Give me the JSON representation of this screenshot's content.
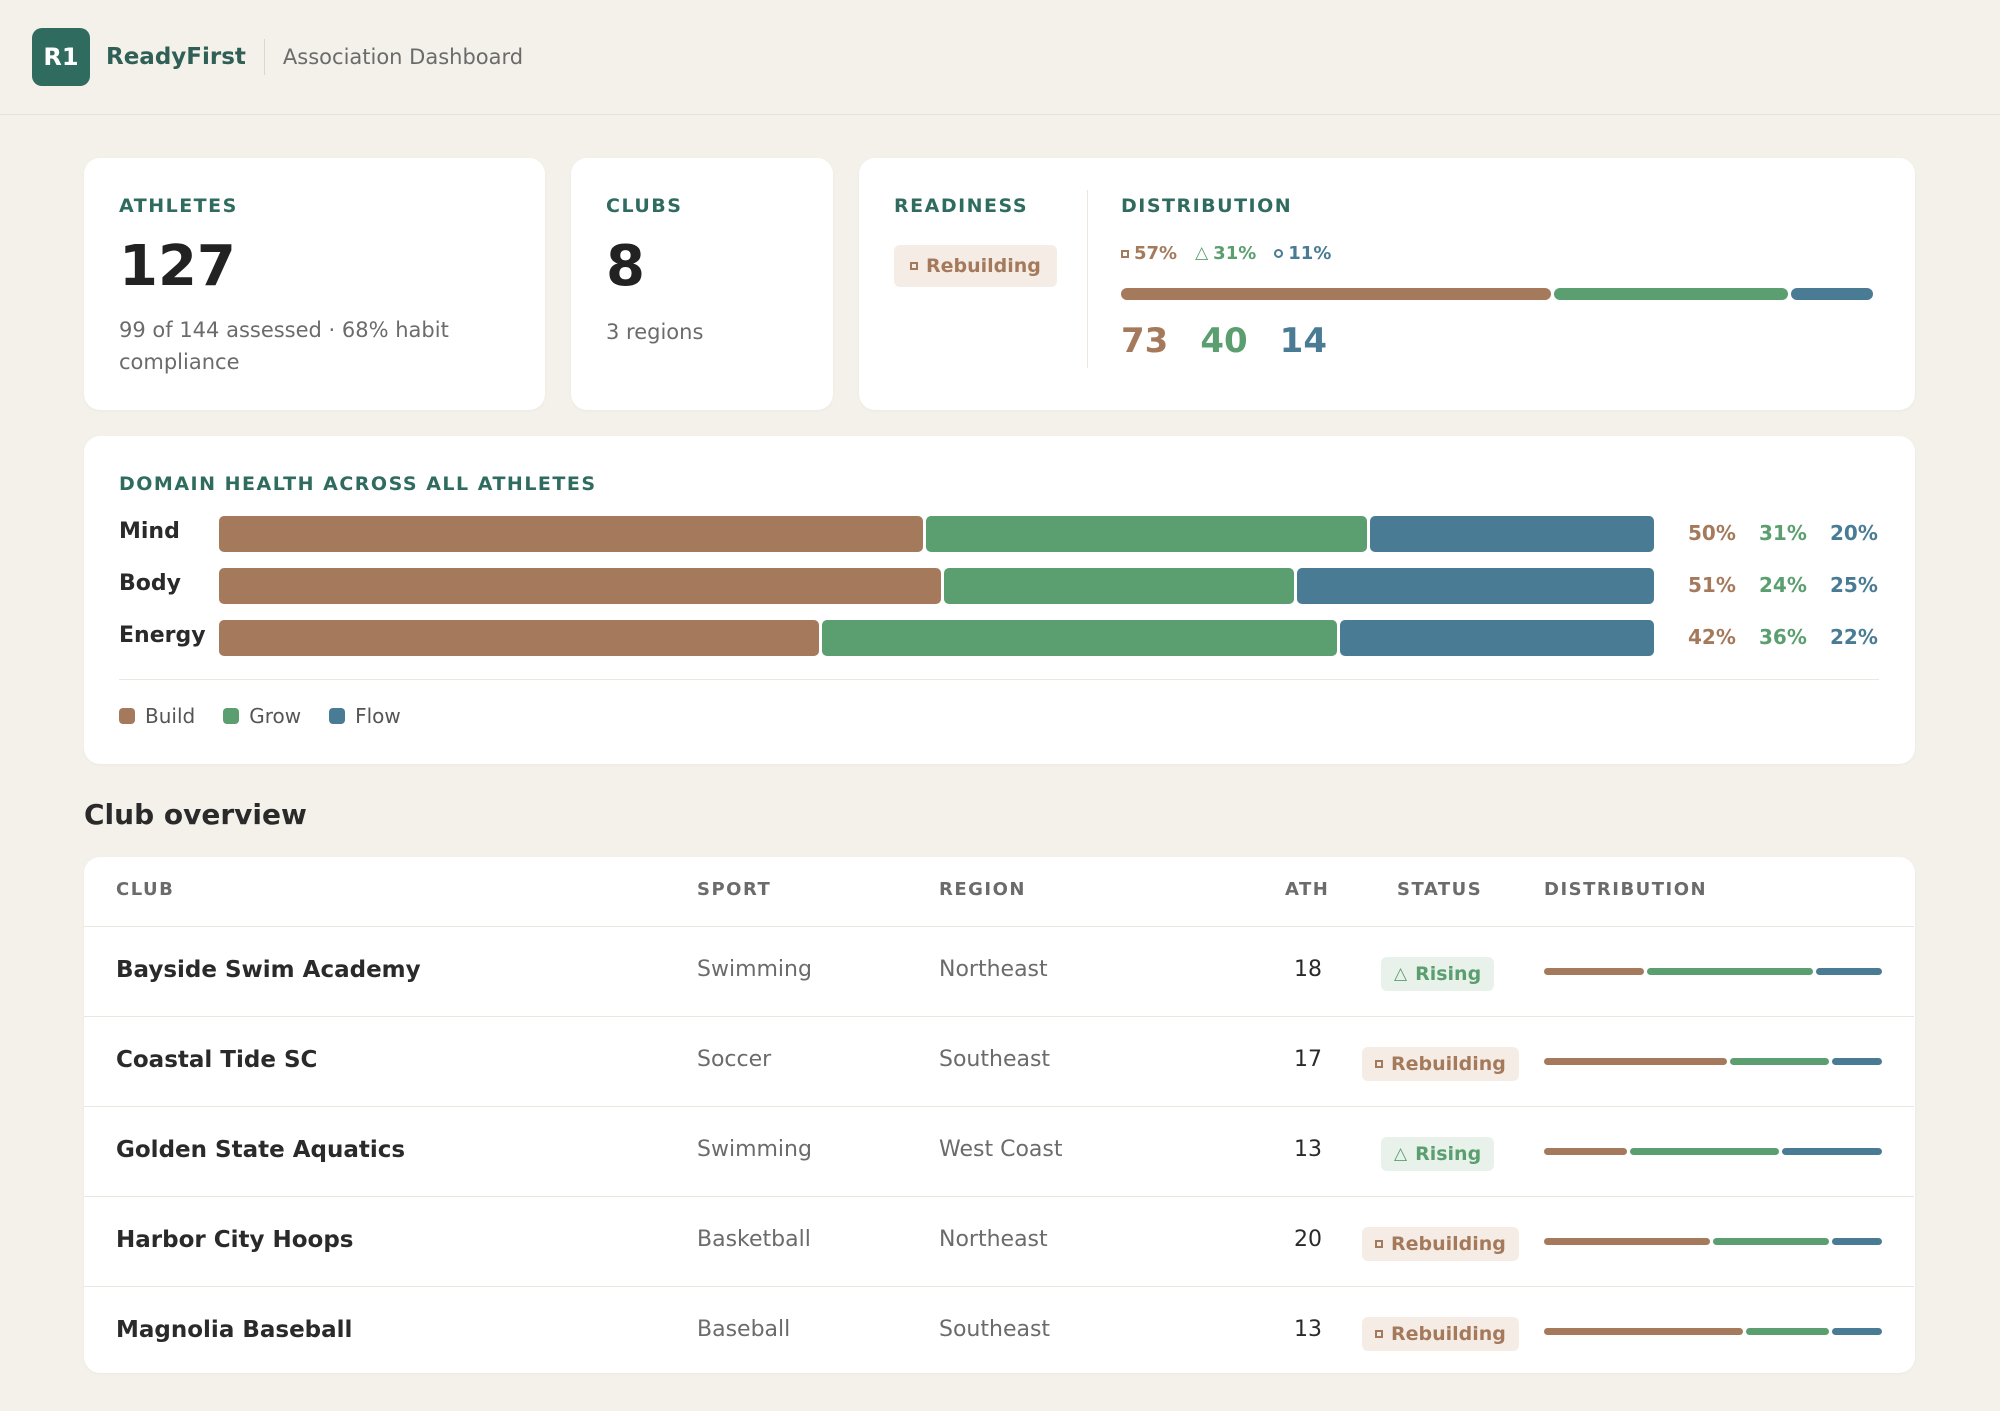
{
  "header": {
    "logo": "R1",
    "brand": "ReadyFirst",
    "subtitle": "Association Dashboard"
  },
  "colors": {
    "build": "#a57a5c",
    "grow": "#5b9e6f",
    "flow": "#4a7b95",
    "accent": "#2f6b5e"
  },
  "athletes": {
    "label": "ATHLETES",
    "value": "127",
    "note": "99 of 144 assessed · 68% habit compliance"
  },
  "clubs": {
    "label": "CLUBS",
    "value": "8",
    "note": "3 regions"
  },
  "readiness": {
    "label": "READINESS",
    "status": "Rebuilding"
  },
  "distribution": {
    "label": "DISTRIBUTION",
    "pct_build": "57%",
    "pct_grow": "31%",
    "pct_flow": "11%",
    "count_build": "73",
    "count_grow": "40",
    "count_flow": "14",
    "shares": [
      0.57,
      0.31,
      0.11
    ]
  },
  "domain_health": {
    "title": "DOMAIN HEALTH ACROSS ALL ATHLETES",
    "rows": [
      {
        "name": "Mind",
        "build": "50%",
        "grow": "31%",
        "flow": "20%",
        "shares": [
          0.495,
          0.31,
          0.2
        ]
      },
      {
        "name": "Body",
        "build": "51%",
        "grow": "24%",
        "flow": "25%",
        "shares": [
          0.505,
          0.245,
          0.25
        ]
      },
      {
        "name": "Energy",
        "build": "42%",
        "grow": "36%",
        "flow": "22%",
        "shares": [
          0.42,
          0.36,
          0.22
        ]
      }
    ],
    "legend": [
      "Build",
      "Grow",
      "Flow"
    ]
  },
  "club_overview": {
    "title": "Club overview",
    "columns": [
      "CLUB",
      "SPORT",
      "REGION",
      "ATH",
      "STATUS",
      "DISTRIBUTION"
    ],
    "rows": [
      {
        "club": "Bayside Swim Academy",
        "sport": "Swimming",
        "region": "Northeast",
        "ath": "18",
        "status": "Rising",
        "shares": [
          0.3,
          0.5,
          0.2
        ]
      },
      {
        "club": "Coastal Tide SC",
        "sport": "Soccer",
        "region": "Southeast",
        "ath": "17",
        "status": "Rebuilding",
        "shares": [
          0.55,
          0.3,
          0.15
        ]
      },
      {
        "club": "Golden State Aquatics",
        "sport": "Swimming",
        "region": "West Coast",
        "ath": "13",
        "status": "Rising",
        "shares": [
          0.25,
          0.45,
          0.3
        ]
      },
      {
        "club": "Harbor City Hoops",
        "sport": "Basketball",
        "region": "Northeast",
        "ath": "20",
        "status": "Rebuilding",
        "shares": [
          0.5,
          0.35,
          0.15
        ]
      },
      {
        "club": "Magnolia Baseball",
        "sport": "Baseball",
        "region": "Southeast",
        "ath": "13",
        "status": "Rebuilding",
        "shares": [
          0.6,
          0.25,
          0.15
        ]
      }
    ]
  }
}
